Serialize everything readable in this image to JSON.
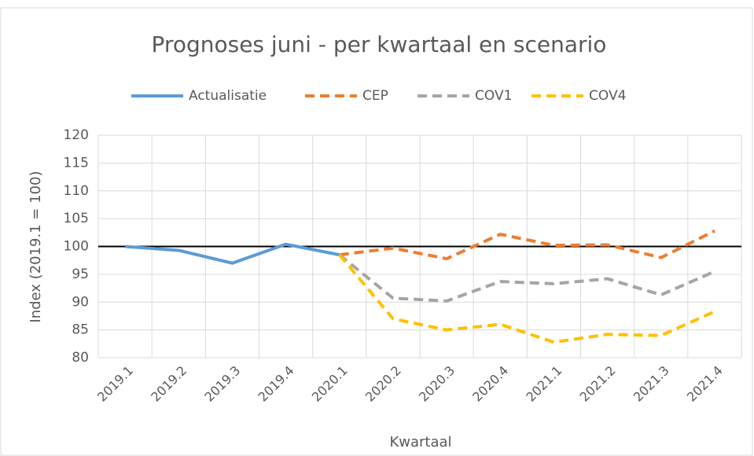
{
  "chart_data": {
    "type": "line",
    "title": "Prognoses juni - per kwartaal en scenario",
    "x_label": "Kwartaal",
    "y_label": "Index (2019.1 = 100)",
    "categories": [
      "2019.1",
      "2019.2",
      "2019.3",
      "2019.4",
      "2020.1",
      "2020.2",
      "2020.3",
      "2020.4",
      "2021.1",
      "2021.2",
      "2021.3",
      "2021.4"
    ],
    "series": [
      {
        "name": "Actualisatie",
        "color": "#5b9bd5",
        "dashed": false,
        "values": [
          100,
          99.3,
          97,
          100.4,
          98.5,
          null,
          null,
          null,
          null,
          null,
          null,
          null
        ]
      },
      {
        "name": "CEP",
        "color": "#ed7d31",
        "dashed": true,
        "values": [
          null,
          null,
          null,
          null,
          98.5,
          99.7,
          97.8,
          102.2,
          100.2,
          100.3,
          98,
          102.8
        ]
      },
      {
        "name": "COV1",
        "color": "#a5a5a5",
        "dashed": true,
        "values": [
          null,
          null,
          null,
          null,
          98.5,
          90.7,
          90.2,
          93.7,
          93.3,
          94.2,
          91.3,
          95.5
        ]
      },
      {
        "name": "COV4",
        "color": "#ffc000",
        "dashed": true,
        "values": [
          null,
          null,
          null,
          null,
          98.5,
          87,
          85,
          86,
          82.8,
          84.2,
          84,
          88.3
        ]
      }
    ],
    "ylim": [
      80,
      120
    ],
    "yticks": [
      80,
      85,
      90,
      95,
      100,
      105,
      110,
      115,
      120
    ],
    "reference_line": 100,
    "grid": true,
    "legend": "top"
  }
}
